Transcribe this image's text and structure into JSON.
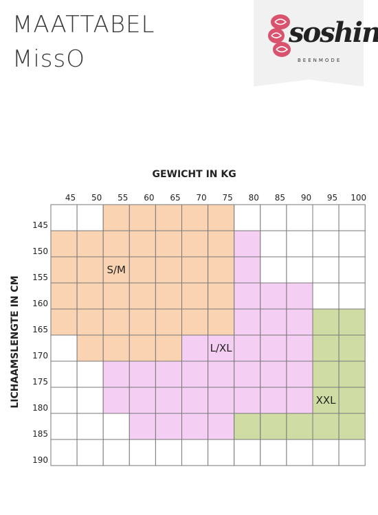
{
  "header": {
    "title": "MAATTABEL",
    "subtitle": "MissO"
  },
  "logo": {
    "wordmark": "soshin",
    "tagline": "BEENMODE",
    "rose_color": "#d9536e"
  },
  "chart_data": {
    "type": "heatmap",
    "title": "",
    "xlabel": "GEWICHT IN KG",
    "ylabel": "LICHAAMSLENGTE IN CM",
    "x_ticks": [
      "45",
      "50",
      "55",
      "60",
      "65",
      "70",
      "75",
      "80",
      "85",
      "90",
      "95",
      "100"
    ],
    "y_ticks": [
      "145",
      "150",
      "155",
      "160",
      "165",
      "170",
      "175",
      "180",
      "185",
      "190"
    ],
    "columns": 12,
    "rows": 10,
    "legend_placement": "inside-regions",
    "regions": [
      {
        "name": "S/M",
        "color": "#fad3b2",
        "cells": [
          [
            0,
            2
          ],
          [
            0,
            3
          ],
          [
            0,
            4
          ],
          [
            0,
            5
          ],
          [
            0,
            6
          ],
          [
            1,
            0
          ],
          [
            1,
            1
          ],
          [
            1,
            2
          ],
          [
            1,
            3
          ],
          [
            1,
            4
          ],
          [
            1,
            5
          ],
          [
            1,
            6
          ],
          [
            2,
            0
          ],
          [
            2,
            1
          ],
          [
            2,
            2
          ],
          [
            2,
            3
          ],
          [
            2,
            4
          ],
          [
            2,
            5
          ],
          [
            2,
            6
          ],
          [
            3,
            0
          ],
          [
            3,
            1
          ],
          [
            3,
            2
          ],
          [
            3,
            3
          ],
          [
            3,
            4
          ],
          [
            3,
            5
          ],
          [
            3,
            6
          ],
          [
            4,
            0
          ],
          [
            4,
            1
          ],
          [
            4,
            2
          ],
          [
            4,
            3
          ],
          [
            4,
            4
          ],
          [
            4,
            5
          ],
          [
            4,
            6
          ],
          [
            5,
            1
          ],
          [
            5,
            2
          ],
          [
            5,
            3
          ],
          [
            5,
            4
          ]
        ]
      },
      {
        "name": "L/XL",
        "color": "#f5cef3",
        "cells": [
          [
            1,
            7
          ],
          [
            2,
            7
          ],
          [
            3,
            7
          ],
          [
            3,
            8
          ],
          [
            3,
            9
          ],
          [
            4,
            7
          ],
          [
            4,
            8
          ],
          [
            4,
            9
          ],
          [
            5,
            5
          ],
          [
            5,
            6
          ],
          [
            5,
            7
          ],
          [
            5,
            8
          ],
          [
            5,
            9
          ],
          [
            6,
            2
          ],
          [
            6,
            3
          ],
          [
            6,
            4
          ],
          [
            6,
            5
          ],
          [
            6,
            6
          ],
          [
            6,
            7
          ],
          [
            6,
            8
          ],
          [
            6,
            9
          ],
          [
            7,
            2
          ],
          [
            7,
            3
          ],
          [
            7,
            4
          ],
          [
            7,
            5
          ],
          [
            7,
            6
          ],
          [
            7,
            7
          ],
          [
            7,
            8
          ],
          [
            7,
            9
          ],
          [
            8,
            3
          ],
          [
            8,
            4
          ],
          [
            8,
            5
          ],
          [
            8,
            6
          ]
        ]
      },
      {
        "name": "XXL",
        "color": "#cfdda4",
        "cells": [
          [
            4,
            10
          ],
          [
            4,
            11
          ],
          [
            5,
            10
          ],
          [
            5,
            11
          ],
          [
            6,
            10
          ],
          [
            6,
            11
          ],
          [
            7,
            10
          ],
          [
            7,
            11
          ],
          [
            8,
            7
          ],
          [
            8,
            8
          ],
          [
            8,
            9
          ],
          [
            8,
            10
          ],
          [
            8,
            11
          ]
        ]
      }
    ],
    "labels": [
      {
        "text": "S/M",
        "col": 2,
        "row": 2
      },
      {
        "text": "L/XL",
        "col": 6,
        "row": 5
      },
      {
        "text": "XXL",
        "col": 10,
        "row": 7
      }
    ],
    "colors": {
      "grid": "#777777",
      "empty": "#ffffff"
    }
  }
}
